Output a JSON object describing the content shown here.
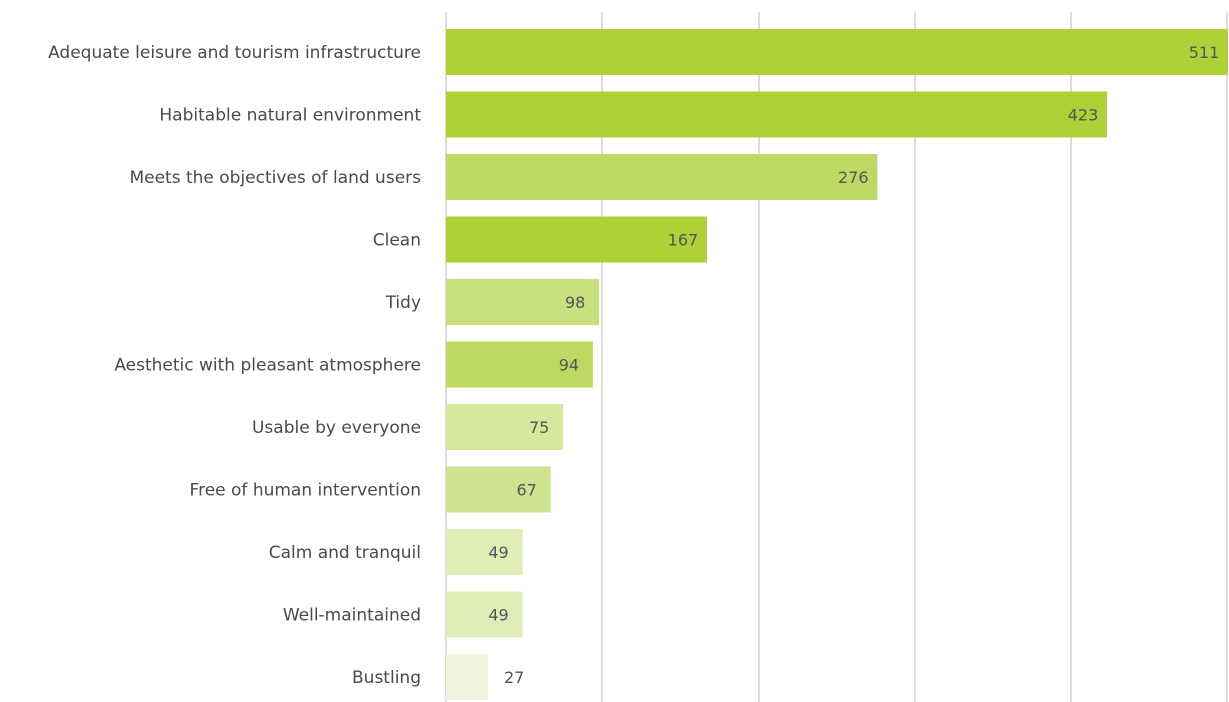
{
  "chart_data": {
    "type": "bar",
    "orientation": "horizontal",
    "categories": [
      "Adequate leisure and tourism infrastructure",
      "Habitable natural environment",
      "Meets the objectives of land users",
      "Clean",
      "Tidy",
      "Aesthetic with pleasant atmosphere",
      "Usable by everyone",
      "Free of human intervention",
      "Calm and tranquil",
      "Well-maintained",
      "Bustling"
    ],
    "values": [
      511,
      423,
      276,
      167,
      98,
      94,
      75,
      67,
      49,
      49,
      27
    ],
    "value_labels": [
      "511",
      "423",
      "276",
      "167",
      "98",
      "94",
      "75",
      "67",
      "49",
      "49",
      "27"
    ],
    "colors": [
      "#add136",
      "#add136",
      "#bdd961",
      "#add136",
      "#c8df7e",
      "#bdd961",
      "#d6e79e",
      "#cfe28e",
      "#e0edb8",
      "#e0edb8",
      "#eef5dc"
    ],
    "xlim": [
      0,
      500
    ],
    "gridlines": [
      0,
      100,
      200,
      300,
      400,
      500
    ],
    "grid": true,
    "legend": "none"
  }
}
